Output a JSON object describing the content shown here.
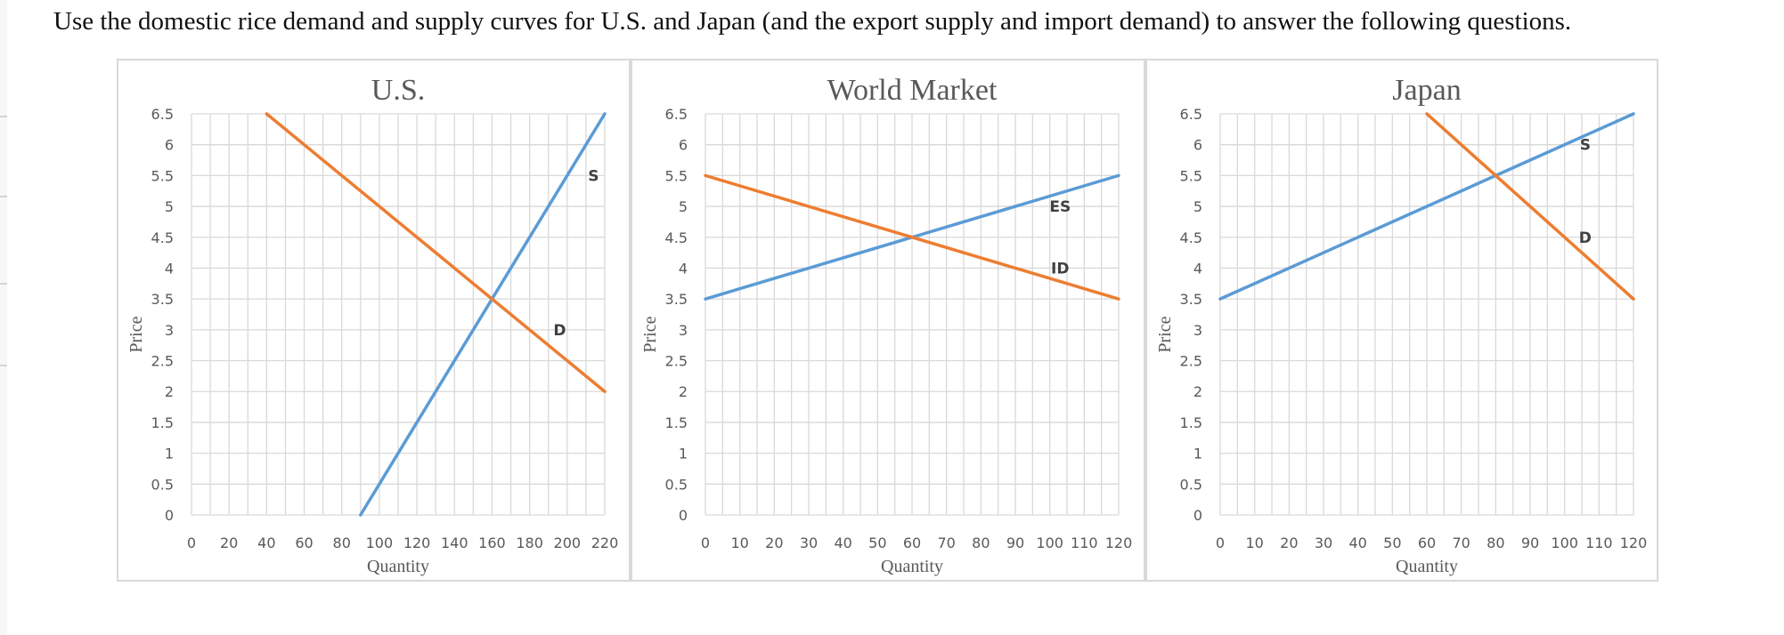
{
  "question": "Use the domestic rice demand and supply curves for U.S. and Japan (and the export supply and import demand) to answer the following questions.",
  "colors": {
    "supply": "#5b9bd5",
    "demand": "#ed7d31",
    "grid": "#d9d9d9",
    "axis_text": "#595959"
  },
  "chart_data": [
    {
      "type": "line",
      "title": "U.S.",
      "xlabel": "Quantity",
      "ylabel": "Price",
      "xlim": [
        0,
        220
      ],
      "ylim": [
        0,
        6.5
      ],
      "x_ticks": [
        "0",
        "20",
        "40",
        "60",
        "80",
        "100",
        "120",
        "140",
        "160",
        "180",
        "200",
        "220"
      ],
      "y_ticks": [
        "0",
        "0.5",
        "1",
        "1.5",
        "2",
        "2.5",
        "3",
        "3.5",
        "4",
        "4.5",
        "5",
        "5.5",
        "6",
        "6.5"
      ],
      "grid": true,
      "series": [
        {
          "name": "S",
          "color": "#5b9bd5",
          "points": [
            [
              90,
              0
            ],
            [
              220,
              6.5
            ]
          ],
          "label_at": [
            214,
            5.5
          ]
        },
        {
          "name": "D",
          "color": "#ed7d31",
          "points": [
            [
              40,
              6.5
            ],
            [
              220,
              2
            ]
          ],
          "label_at": [
            196,
            3
          ]
        }
      ]
    },
    {
      "type": "line",
      "title": "World Market",
      "xlabel": "Quantity",
      "ylabel": "Price",
      "xlim": [
        0,
        120
      ],
      "ylim": [
        0,
        6.5
      ],
      "x_ticks": [
        "0",
        "10",
        "20",
        "30",
        "40",
        "50",
        "60",
        "70",
        "80",
        "90",
        "100",
        "110",
        "120"
      ],
      "y_ticks": [
        "0",
        "0.5",
        "1",
        "1.5",
        "2",
        "2.5",
        "3",
        "3.5",
        "4",
        "4.5",
        "5",
        "5.5",
        "6",
        "6.5"
      ],
      "grid": true,
      "series": [
        {
          "name": "ES",
          "color": "#5b9bd5",
          "points": [
            [
              0,
              3.5
            ],
            [
              120,
              5.5
            ]
          ],
          "label_at": [
            103,
            5
          ]
        },
        {
          "name": "ID",
          "color": "#ed7d31",
          "points": [
            [
              0,
              5.5
            ],
            [
              120,
              3.5
            ]
          ],
          "label_at": [
            103,
            4
          ]
        }
      ]
    },
    {
      "type": "line",
      "title": "Japan",
      "xlabel": "Quantity",
      "ylabel": "Price",
      "xlim": [
        0,
        120
      ],
      "ylim": [
        0,
        6.5
      ],
      "x_ticks": [
        "0",
        "10",
        "20",
        "30",
        "40",
        "50",
        "60",
        "70",
        "80",
        "90",
        "100",
        "110",
        "120"
      ],
      "y_ticks": [
        "0",
        "0.5",
        "1",
        "1.5",
        "2",
        "2.5",
        "3",
        "3.5",
        "4",
        "4.5",
        "5",
        "5.5",
        "6",
        "6.5"
      ],
      "grid": true,
      "series": [
        {
          "name": "S",
          "color": "#5b9bd5",
          "points": [
            [
              0,
              3.5
            ],
            [
              120,
              6.5
            ]
          ],
          "label_at": [
            106,
            6
          ]
        },
        {
          "name": "D",
          "color": "#ed7d31",
          "points": [
            [
              60,
              6.5
            ],
            [
              120,
              3.5
            ]
          ],
          "label_at": [
            106,
            4.5
          ]
        }
      ]
    }
  ]
}
